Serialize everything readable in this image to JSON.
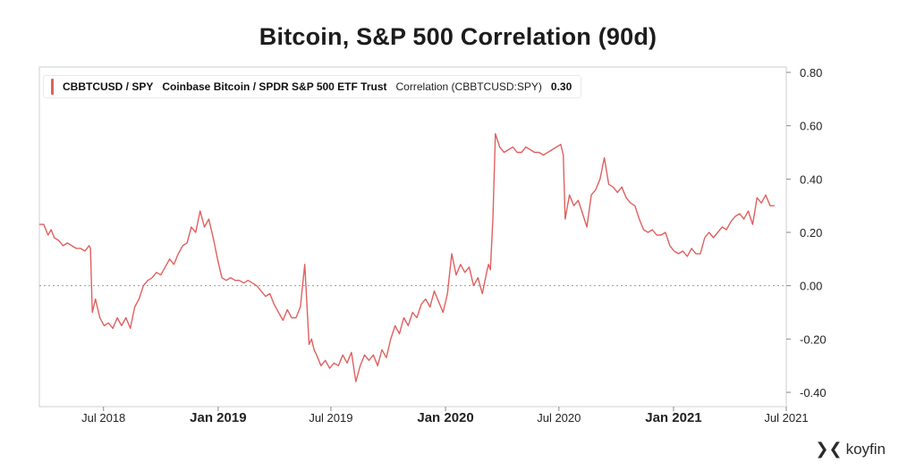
{
  "title": "Bitcoin, S&P 500 Correlation (90d)",
  "legend": {
    "ticker": "CBBTCUSD / SPY",
    "name": "Coinbase Bitcoin / SPDR S&P 500 ETF Trust",
    "metric": "Correlation (CBBTCUSD:SPY)",
    "value": "0.30"
  },
  "brand": {
    "name": "koyfin",
    "icon": "koyfin-logo-icon"
  },
  "colors": {
    "line": "#e0605f",
    "zero_line": "#9a9a9a",
    "axis": "#cfcfcf"
  },
  "chart_data": {
    "type": "line",
    "title": "Bitcoin, S&P 500 Correlation (90d)",
    "ylim": [
      -0.4,
      0.8
    ],
    "ytick_labels": [
      "0.80",
      "0.60",
      "0.40",
      "0.20",
      "0.00",
      "-0.20",
      "-0.40"
    ],
    "ytick_values": [
      0.8,
      0.6,
      0.4,
      0.2,
      0.0,
      -0.2,
      -0.4
    ],
    "xtick_labels": [
      "Jul 2018",
      "Jan 2019",
      "Jul 2019",
      "Jan 2020",
      "Jul 2020",
      "Jan 2021",
      "Jul 2021"
    ],
    "xtick_dates": [
      "2018-07-01",
      "2019-01-01",
      "2019-07-01",
      "2020-01-01",
      "2020-07-01",
      "2021-01-01",
      "2021-07-01"
    ],
    "xtick_bold": [
      false,
      true,
      false,
      true,
      false,
      true,
      false
    ],
    "xlim": [
      "2018-03-20",
      "2021-07-01"
    ],
    "zero_line": true,
    "grid": false,
    "legend_position": "top-left",
    "series": [
      {
        "name": "Correlation (CBBTCUSD:SPY)",
        "x": [
          "2018-03-20",
          "2018-03-27",
          "2018-04-03",
          "2018-04-08",
          "2018-04-13",
          "2018-04-20",
          "2018-04-27",
          "2018-05-04",
          "2018-05-11",
          "2018-05-18",
          "2018-05-25",
          "2018-06-01",
          "2018-06-08",
          "2018-06-10",
          "2018-06-13",
          "2018-06-18",
          "2018-06-25",
          "2018-07-02",
          "2018-07-09",
          "2018-07-16",
          "2018-07-23",
          "2018-07-30",
          "2018-08-06",
          "2018-08-13",
          "2018-08-20",
          "2018-08-27",
          "2018-09-03",
          "2018-09-10",
          "2018-09-17",
          "2018-09-24",
          "2018-10-01",
          "2018-10-08",
          "2018-10-15",
          "2018-10-22",
          "2018-10-29",
          "2018-11-05",
          "2018-11-12",
          "2018-11-19",
          "2018-11-26",
          "2018-12-03",
          "2018-12-10",
          "2018-12-17",
          "2018-12-24",
          "2018-12-31",
          "2019-01-07",
          "2019-01-14",
          "2019-01-21",
          "2019-01-28",
          "2019-02-04",
          "2019-02-11",
          "2019-02-18",
          "2019-02-25",
          "2019-03-04",
          "2019-03-11",
          "2019-03-18",
          "2019-03-25",
          "2019-04-01",
          "2019-04-08",
          "2019-04-15",
          "2019-04-22",
          "2019-04-29",
          "2019-05-06",
          "2019-05-13",
          "2019-05-20",
          "2019-05-27",
          "2019-05-31",
          "2019-06-04",
          "2019-06-08",
          "2019-06-15",
          "2019-06-22",
          "2019-06-29",
          "2019-07-06",
          "2019-07-13",
          "2019-07-20",
          "2019-07-27",
          "2019-08-03",
          "2019-08-10",
          "2019-08-17",
          "2019-08-24",
          "2019-08-31",
          "2019-09-07",
          "2019-09-14",
          "2019-09-21",
          "2019-09-28",
          "2019-10-05",
          "2019-10-12",
          "2019-10-19",
          "2019-10-26",
          "2019-11-02",
          "2019-11-09",
          "2019-11-16",
          "2019-11-23",
          "2019-11-30",
          "2019-12-07",
          "2019-12-14",
          "2019-12-21",
          "2019-12-28",
          "2020-01-04",
          "2020-01-11",
          "2020-01-18",
          "2020-01-25",
          "2020-02-01",
          "2020-02-08",
          "2020-02-15",
          "2020-02-22",
          "2020-02-29",
          "2020-03-07",
          "2020-03-10",
          "2020-03-13",
          "2020-03-17",
          "2020-03-21",
          "2020-03-28",
          "2020-04-04",
          "2020-04-11",
          "2020-04-18",
          "2020-04-25",
          "2020-05-02",
          "2020-05-09",
          "2020-05-16",
          "2020-05-23",
          "2020-05-30",
          "2020-06-06",
          "2020-06-13",
          "2020-06-20",
          "2020-06-27",
          "2020-07-04",
          "2020-07-08",
          "2020-07-11",
          "2020-07-18",
          "2020-07-25",
          "2020-08-01",
          "2020-08-08",
          "2020-08-15",
          "2020-08-22",
          "2020-08-29",
          "2020-09-05",
          "2020-09-12",
          "2020-09-19",
          "2020-09-26",
          "2020-10-03",
          "2020-10-10",
          "2020-10-17",
          "2020-10-24",
          "2020-10-31",
          "2020-11-07",
          "2020-11-14",
          "2020-11-21",
          "2020-11-28",
          "2020-12-05",
          "2020-12-12",
          "2020-12-19",
          "2020-12-26",
          "2021-01-02",
          "2021-01-09",
          "2021-01-16",
          "2021-01-23",
          "2021-01-30",
          "2021-02-06",
          "2021-02-13",
          "2021-02-20",
          "2021-02-27",
          "2021-03-06",
          "2021-03-13",
          "2021-03-20",
          "2021-03-27",
          "2021-04-03",
          "2021-04-10",
          "2021-04-17",
          "2021-04-24",
          "2021-05-01",
          "2021-05-08",
          "2021-05-15",
          "2021-05-22",
          "2021-05-29",
          "2021-06-05",
          "2021-06-12"
        ],
        "y": [
          0.23,
          0.23,
          0.19,
          0.21,
          0.18,
          0.17,
          0.15,
          0.16,
          0.15,
          0.14,
          0.14,
          0.13,
          0.15,
          0.14,
          -0.1,
          -0.05,
          -0.12,
          -0.15,
          -0.14,
          -0.16,
          -0.12,
          -0.15,
          -0.12,
          -0.16,
          -0.08,
          -0.05,
          0.0,
          0.02,
          0.03,
          0.05,
          0.04,
          0.07,
          0.1,
          0.08,
          0.12,
          0.15,
          0.16,
          0.22,
          0.2,
          0.28,
          0.22,
          0.25,
          0.18,
          0.1,
          0.03,
          0.02,
          0.03,
          0.02,
          0.02,
          0.01,
          0.02,
          0.01,
          0.0,
          -0.02,
          -0.04,
          -0.03,
          -0.07,
          -0.1,
          -0.13,
          -0.09,
          -0.12,
          -0.12,
          -0.08,
          0.08,
          -0.22,
          -0.2,
          -0.24,
          -0.26,
          -0.3,
          -0.28,
          -0.31,
          -0.29,
          -0.3,
          -0.26,
          -0.29,
          -0.25,
          -0.36,
          -0.3,
          -0.26,
          -0.28,
          -0.26,
          -0.3,
          -0.24,
          -0.27,
          -0.2,
          -0.15,
          -0.18,
          -0.12,
          -0.15,
          -0.1,
          -0.12,
          -0.07,
          -0.05,
          -0.08,
          -0.02,
          -0.06,
          -0.1,
          -0.03,
          0.12,
          0.04,
          0.08,
          0.05,
          0.07,
          0.0,
          0.03,
          -0.03,
          0.05,
          0.08,
          0.06,
          0.25,
          0.57,
          0.52,
          0.5,
          0.51,
          0.52,
          0.5,
          0.5,
          0.52,
          0.51,
          0.5,
          0.5,
          0.49,
          0.5,
          0.51,
          0.52,
          0.53,
          0.49,
          0.25,
          0.34,
          0.3,
          0.32,
          0.27,
          0.22,
          0.34,
          0.36,
          0.4,
          0.48,
          0.38,
          0.37,
          0.35,
          0.37,
          0.33,
          0.31,
          0.3,
          0.25,
          0.21,
          0.2,
          0.21,
          0.19,
          0.19,
          0.2,
          0.15,
          0.13,
          0.12,
          0.13,
          0.11,
          0.14,
          0.12,
          0.12,
          0.18,
          0.2,
          0.18,
          0.2,
          0.22,
          0.21,
          0.24,
          0.26,
          0.27,
          0.25,
          0.28,
          0.23,
          0.33,
          0.31,
          0.34,
          0.3,
          0.3
        ]
      }
    ]
  }
}
